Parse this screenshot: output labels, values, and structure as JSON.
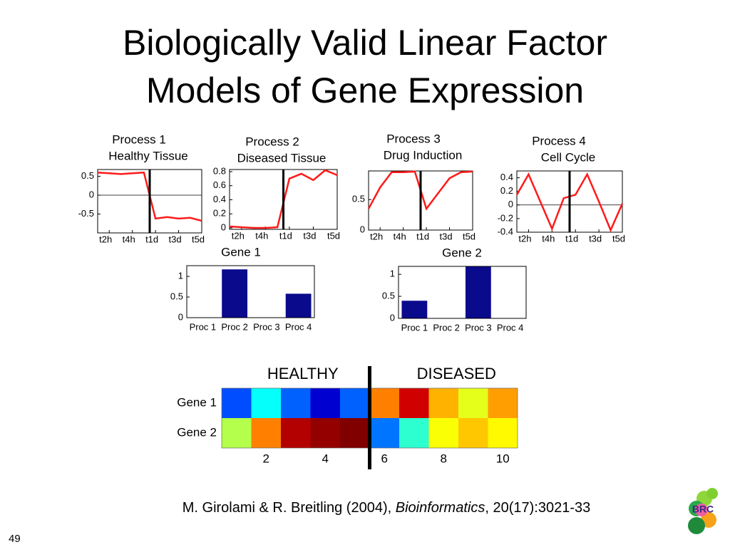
{
  "title": [
    "Biologically Valid Linear Factor",
    "Models of Gene Expression"
  ],
  "citation": {
    "authors": "M. Girolami & R. Breitling (2004), ",
    "journal": "Bioinformatics",
    "details": ", 20(17):3021-33"
  },
  "page_number": "49",
  "logo": "BRC",
  "chart_data": [
    {
      "type": "line",
      "title": "Process 1",
      "subtitle": "Healthy Tissue",
      "color": "#ff1a1a",
      "zeroline": true,
      "divider": 5.5,
      "x": [
        1,
        2,
        3,
        4,
        5,
        6,
        7,
        8,
        9,
        10
      ],
      "values": [
        0.6,
        0.58,
        0.56,
        0.58,
        0.6,
        -0.62,
        -0.58,
        -0.62,
        -0.6,
        -0.68
      ],
      "xlim": [
        1,
        10
      ],
      "xticks": [
        {
          "value": 2,
          "label": "t2h"
        },
        {
          "value": 4,
          "label": "t4h"
        },
        {
          "value": 6,
          "label": "t1d"
        },
        {
          "value": 8,
          "label": "t3d"
        },
        {
          "value": 10,
          "label": "t5d"
        }
      ],
      "ylim": [
        -1,
        0.68
      ],
      "yticks": [
        0.5,
        0,
        -0.5
      ]
    },
    {
      "type": "line",
      "title": "Process 2",
      "subtitle": "Diseased Tissue",
      "color": "#ff1a1a",
      "zeroline": false,
      "divider": 5.5,
      "x": [
        1,
        2,
        3,
        4,
        5,
        6,
        7,
        8,
        9,
        10
      ],
      "values": [
        0.02,
        0.01,
        0.0,
        0.0,
        0.01,
        0.7,
        0.77,
        0.68,
        0.82,
        0.75
      ],
      "xlim": [
        1,
        10
      ],
      "xticks": [
        {
          "value": 2,
          "label": "t2h"
        },
        {
          "value": 4,
          "label": "t4h"
        },
        {
          "value": 6,
          "label": "t1d"
        },
        {
          "value": 8,
          "label": "t3d"
        },
        {
          "value": 10,
          "label": "t5d"
        }
      ],
      "ylim": [
        -0.02,
        0.83
      ],
      "yticks": [
        0,
        0.2,
        0.4,
        0.6,
        0.8
      ]
    },
    {
      "type": "line",
      "title": "Process 3",
      "subtitle": "Drug Induction",
      "color": "#ff1a1a",
      "zeroline": false,
      "divider": 5.5,
      "x": [
        1,
        2,
        3,
        4,
        5,
        6,
        7,
        8,
        9,
        10
      ],
      "values": [
        0.35,
        0.7,
        0.95,
        0.95,
        0.96,
        0.35,
        0.6,
        0.85,
        0.95,
        0.96
      ],
      "xlim": [
        1,
        10
      ],
      "xticks": [
        {
          "value": 2,
          "label": "t2h"
        },
        {
          "value": 4,
          "label": "t4h"
        },
        {
          "value": 6,
          "label": "t1d"
        },
        {
          "value": 8,
          "label": "t3d"
        },
        {
          "value": 10,
          "label": "t5d"
        }
      ],
      "ylim": [
        0,
        0.97
      ],
      "yticks": [
        0,
        0.5
      ]
    },
    {
      "type": "line",
      "title": "Process 4",
      "subtitle": "Cell Cycle",
      "color": "#ff1a1a",
      "zeroline": true,
      "divider": 5.5,
      "x": [
        1,
        2,
        3,
        4,
        5,
        6,
        7,
        8,
        9,
        10
      ],
      "values": [
        0.15,
        0.45,
        0.05,
        -0.35,
        0.1,
        0.15,
        0.45,
        0.05,
        -0.37,
        0.02
      ],
      "xlim": [
        1,
        10
      ],
      "xticks": [
        {
          "value": 2,
          "label": "t2h"
        },
        {
          "value": 4,
          "label": "t4h"
        },
        {
          "value": 6,
          "label": "t1d"
        },
        {
          "value": 8,
          "label": "t3d"
        },
        {
          "value": 10,
          "label": "t5d"
        }
      ],
      "ylim": [
        -0.4,
        0.5
      ],
      "yticks": [
        0.4,
        0.2,
        0,
        -0.2,
        -0.4
      ]
    },
    {
      "type": "bar",
      "title": "Gene 1",
      "color": "#0a0a8c",
      "categories": [
        "Proc 1",
        "Proc 2",
        "Proc 3",
        "Proc 4"
      ],
      "values": [
        0,
        1.17,
        0,
        0.58
      ],
      "ylim": [
        0,
        1.26
      ],
      "yticks": [
        0,
        0.5,
        1
      ]
    },
    {
      "type": "bar",
      "title": "Gene 2",
      "color": "#0a0a8c",
      "categories": [
        "Proc 1",
        "Proc 2",
        "Proc 3",
        "Proc 4"
      ],
      "values": [
        0.4,
        0,
        1.18,
        0
      ],
      "ylim": [
        0,
        1.18
      ],
      "yticks": [
        0,
        0.5,
        1
      ]
    },
    {
      "type": "heatmap",
      "group_labels": [
        "HEALTHY",
        "DISEASED"
      ],
      "divider": 5.5,
      "colormap": "jet",
      "clim": [
        0,
        1
      ],
      "rows": [
        "Gene 1",
        "Gene 2"
      ],
      "values": [
        [
          0.2,
          0.38,
          0.22,
          0.08,
          0.22,
          0.75,
          0.92,
          0.7,
          0.6,
          0.72
        ],
        [
          0.55,
          0.75,
          0.95,
          0.98,
          1.0,
          0.24,
          0.42,
          0.62,
          0.68,
          0.63
        ]
      ],
      "xlim": [
        0.5,
        10.5
      ],
      "xticks": [
        2,
        4,
        6,
        8,
        10
      ]
    }
  ]
}
